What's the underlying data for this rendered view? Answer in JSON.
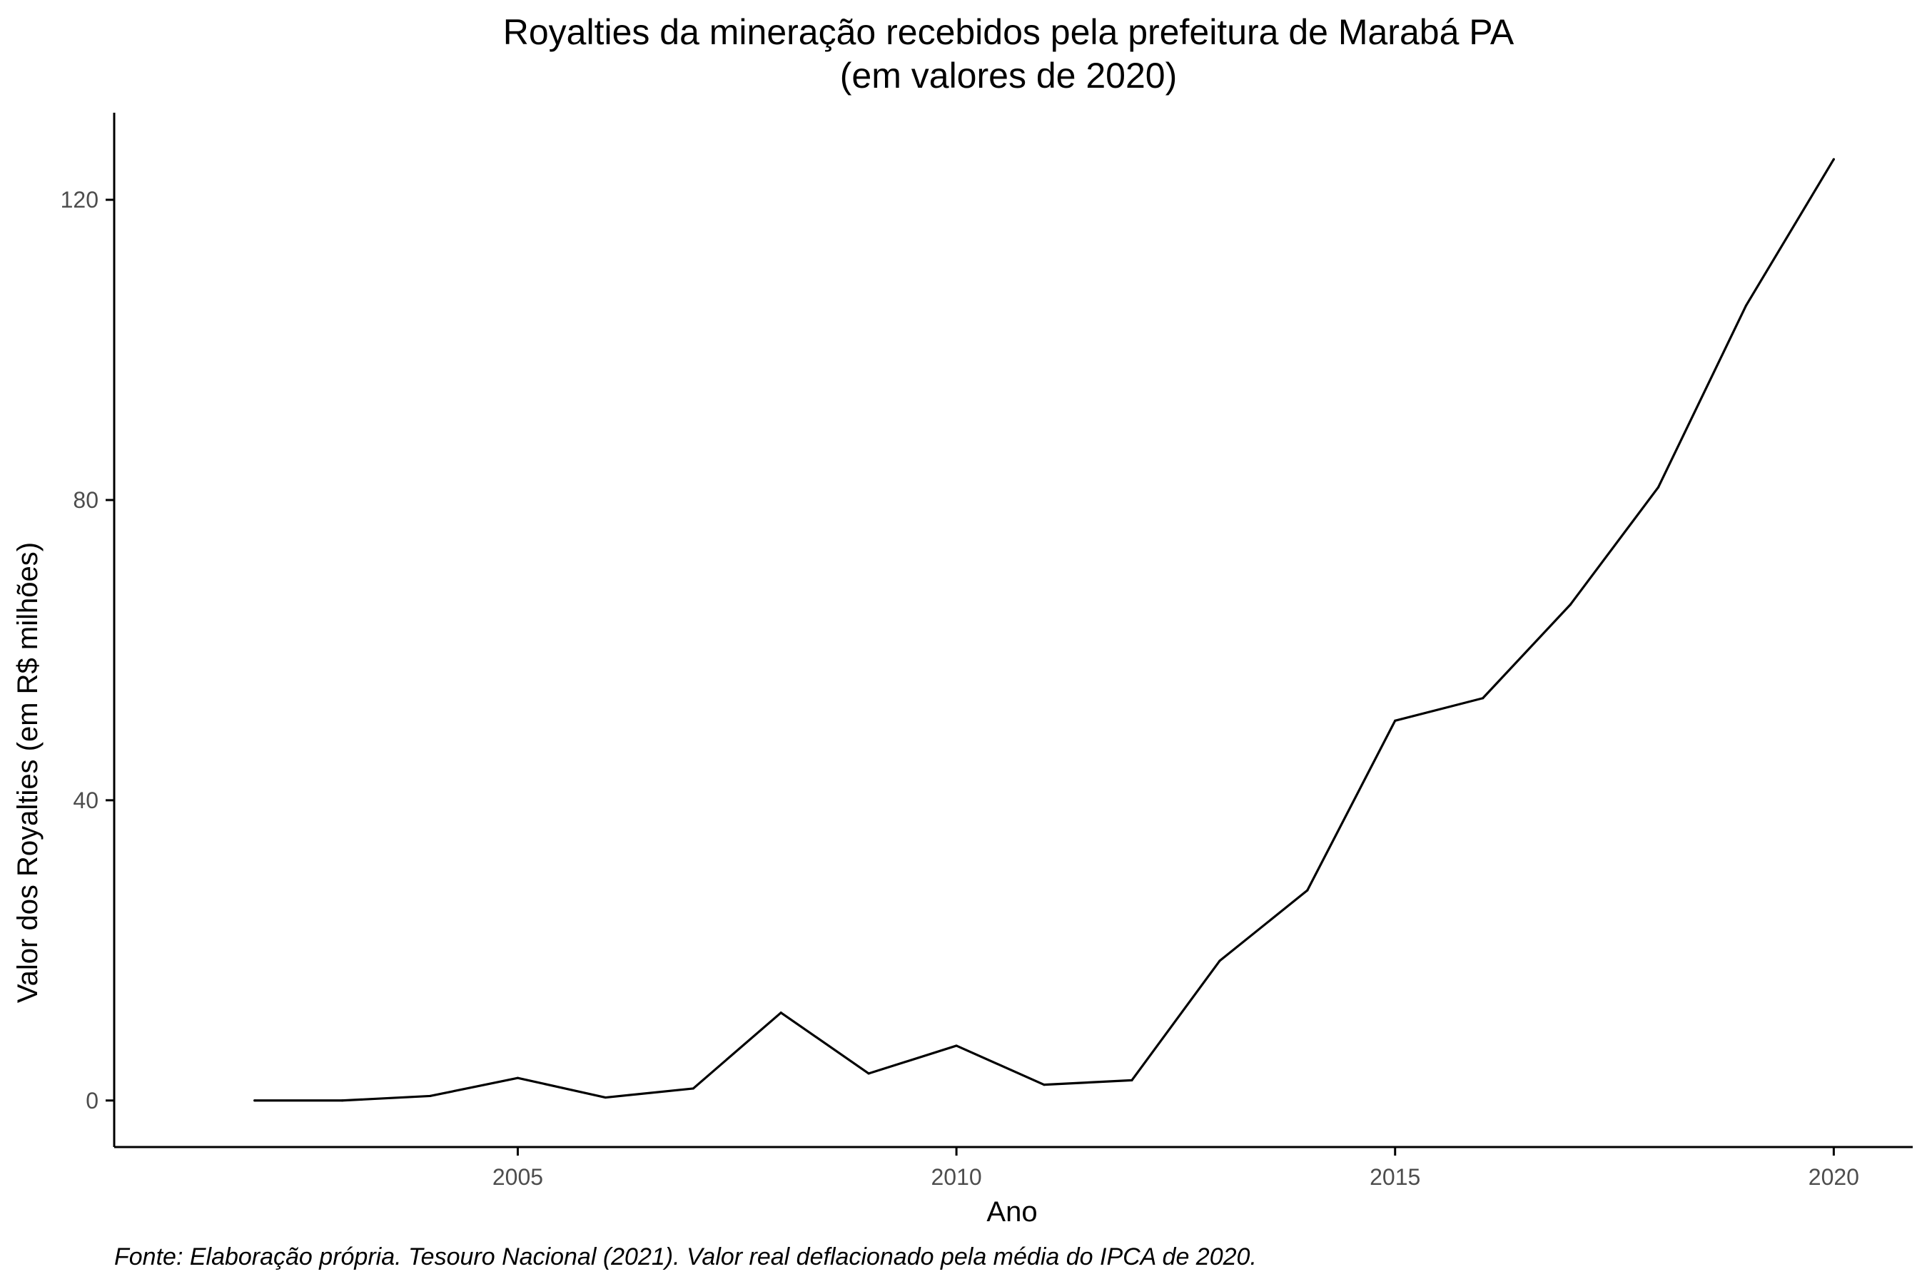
{
  "chart_data": {
    "type": "line",
    "title": "Royalties da mineração recebidos pela prefeitura de Marabá PA",
    "subtitle": "(em valores de 2020)",
    "xlabel": "Ano",
    "ylabel": "Valor dos Royalties (em R$ milhões)",
    "caption": "Fonte: Elaboração própria. Tesouro Nacional (2021). Valor real deflacionado pela média do IPCA de 2020.",
    "x": [
      2002,
      2003,
      2004,
      2005,
      2006,
      2007,
      2008,
      2009,
      2010,
      2011,
      2012,
      2013,
      2014,
      2015,
      2016,
      2017,
      2018,
      2019,
      2020
    ],
    "series": [
      {
        "values": [
          0.0,
          0.0,
          0.6,
          3.0,
          0.4,
          1.6,
          11.7,
          3.6,
          7.3,
          2.1,
          2.7,
          18.6,
          28.0,
          50.6,
          53.6,
          66.1,
          81.7,
          105.9,
          125.4
        ]
      }
    ],
    "xlim": [
      2000.4,
      2020.9
    ],
    "ylim": [
      -6.2,
      131.6
    ],
    "xticks": [
      2005,
      2010,
      2015,
      2020
    ],
    "yticks": [
      0,
      40,
      80,
      120
    ],
    "grid": false,
    "legend": "none",
    "line_color": "#000000",
    "axis_color": "#000000",
    "tick_label_color": "#4d4d4d"
  }
}
